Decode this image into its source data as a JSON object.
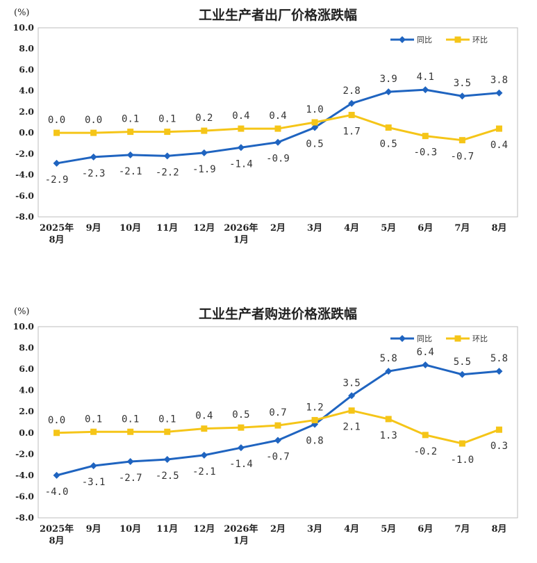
{
  "chart_data": [
    {
      "type": "line",
      "title": "工业生产者出厂价格涨跌幅",
      "unit": "(%)",
      "ylim": [
        -8.0,
        10.0
      ],
      "yticks": [
        "10.0",
        "8.0",
        "6.0",
        "4.0",
        "2.0",
        "0.0",
        "-2.0",
        "-4.0",
        "-6.0",
        "-8.0"
      ],
      "categories": [
        [
          "2025年",
          "8月"
        ],
        [
          "9月"
        ],
        [
          "10月"
        ],
        [
          "11月"
        ],
        [
          "12月"
        ],
        [
          "2026年",
          "1月"
        ],
        [
          "2月"
        ],
        [
          "3月"
        ],
        [
          "4月"
        ],
        [
          "5月"
        ],
        [
          "6月"
        ],
        [
          "7月"
        ],
        [
          "8月"
        ]
      ],
      "legend_position": "top-right",
      "grid": false,
      "series": [
        {
          "name": "同比",
          "color": "#1f64c0",
          "marker": "diamond",
          "values": [
            -2.9,
            -2.3,
            -2.1,
            -2.2,
            -1.9,
            -1.4,
            -0.9,
            0.5,
            2.8,
            3.9,
            4.1,
            3.5,
            3.8
          ],
          "labels": [
            "-2.9",
            "-2.3",
            "-2.1",
            "-2.2",
            "-1.9",
            "-1.4",
            "-0.9",
            "0.5",
            "2.8",
            "3.9",
            "4.1",
            "3.5",
            "3.8"
          ]
        },
        {
          "name": "环比",
          "color": "#f5c518",
          "marker": "square",
          "values": [
            0.0,
            0.0,
            0.1,
            0.1,
            0.2,
            0.4,
            0.4,
            1.0,
            1.7,
            0.5,
            -0.3,
            -0.7,
            0.4
          ],
          "labels": [
            "0.0",
            "0.0",
            "0.1",
            "0.1",
            "0.2",
            "0.4",
            "0.4",
            "1.0",
            "1.7",
            "0.5",
            "-0.3",
            "-0.7",
            "0.4"
          ]
        }
      ]
    },
    {
      "type": "line",
      "title": "工业生产者购进价格涨跌幅",
      "unit": "(%)",
      "ylim": [
        -8.0,
        10.0
      ],
      "yticks": [
        "10.0",
        "8.0",
        "6.0",
        "4.0",
        "2.0",
        "0.0",
        "-2.0",
        "-4.0",
        "-6.0",
        "-8.0"
      ],
      "categories": [
        [
          "2025年",
          "8月"
        ],
        [
          "9月"
        ],
        [
          "10月"
        ],
        [
          "11月"
        ],
        [
          "12月"
        ],
        [
          "2026年",
          "1月"
        ],
        [
          "2月"
        ],
        [
          "3月"
        ],
        [
          "4月"
        ],
        [
          "5月"
        ],
        [
          "6月"
        ],
        [
          "7月"
        ],
        [
          "8月"
        ]
      ],
      "legend_position": "top-right",
      "grid": false,
      "series": [
        {
          "name": "同比",
          "color": "#1f64c0",
          "marker": "diamond",
          "values": [
            -4.0,
            -3.1,
            -2.7,
            -2.5,
            -2.1,
            -1.4,
            -0.7,
            0.8,
            3.5,
            5.8,
            6.4,
            5.5,
            5.8
          ],
          "labels": [
            "-4.0",
            "-3.1",
            "-2.7",
            "-2.5",
            "-2.1",
            "-1.4",
            "-0.7",
            "0.8",
            "3.5",
            "5.8",
            "6.4",
            "5.5",
            "5.8"
          ]
        },
        {
          "name": "环比",
          "color": "#f5c518",
          "marker": "square",
          "values": [
            0.0,
            0.1,
            0.1,
            0.1,
            0.4,
            0.5,
            0.7,
            1.2,
            2.1,
            1.3,
            -0.2,
            -1.0,
            0.3
          ],
          "labels": [
            "0.0",
            "0.1",
            "0.1",
            "0.1",
            "0.4",
            "0.5",
            "0.7",
            "1.2",
            "2.1",
            "1.3",
            "-0.2",
            "-1.0",
            "0.3"
          ]
        }
      ]
    }
  ]
}
